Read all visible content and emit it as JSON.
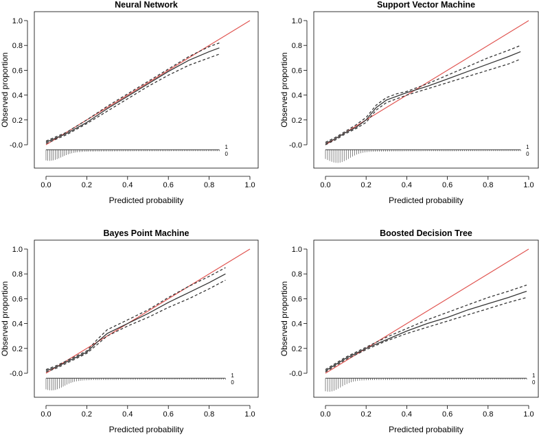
{
  "chart_data": [
    {
      "type": "line",
      "title": "Neural Network",
      "xlabel": "Predicted probability",
      "ylabel": "Observed proportion",
      "xlim": [
        0,
        1
      ],
      "ylim": [
        -0.05,
        1.0
      ],
      "x_ticks": [
        "0.0",
        "0.2",
        "0.4",
        "0.6",
        "0.8",
        "1.0"
      ],
      "y_ticks": [
        "-0.0",
        "0.2",
        "0.4",
        "0.6",
        "0.8",
        "1.0"
      ],
      "rug_labels": [
        "1",
        "0"
      ],
      "series": [
        {
          "name": "ideal",
          "color": "#e0534f",
          "style": "solid",
          "x": [
            0,
            1
          ],
          "y": [
            0,
            1
          ]
        },
        {
          "name": "calibration",
          "color": "#333333",
          "style": "solid",
          "x": [
            0.0,
            0.1,
            0.2,
            0.3,
            0.4,
            0.5,
            0.6,
            0.7,
            0.8,
            0.85
          ],
          "y": [
            0.02,
            0.09,
            0.18,
            0.29,
            0.39,
            0.49,
            0.59,
            0.68,
            0.75,
            0.78
          ]
        },
        {
          "name": "upper bound",
          "color": "#333333",
          "style": "dashed",
          "x": [
            0.0,
            0.1,
            0.2,
            0.3,
            0.4,
            0.5,
            0.6,
            0.7,
            0.8,
            0.85
          ],
          "y": [
            0.03,
            0.1,
            0.2,
            0.31,
            0.41,
            0.51,
            0.61,
            0.71,
            0.79,
            0.82
          ]
        },
        {
          "name": "lower bound",
          "color": "#333333",
          "style": "dashed",
          "x": [
            0.0,
            0.1,
            0.2,
            0.3,
            0.4,
            0.5,
            0.6,
            0.7,
            0.8,
            0.85
          ],
          "y": [
            0.01,
            0.08,
            0.17,
            0.27,
            0.37,
            0.47,
            0.56,
            0.64,
            0.7,
            0.73
          ]
        }
      ],
      "rug": {
        "x_max": 0.85,
        "peak": 0.02,
        "neg_depth": 0.09
      }
    },
    {
      "type": "line",
      "title": "Support Vector Machine",
      "xlabel": "Predicted probability",
      "ylabel": "Observed proportion",
      "xlim": [
        0,
        1
      ],
      "ylim": [
        -0.05,
        1.0
      ],
      "x_ticks": [
        "0.0",
        "0.2",
        "0.4",
        "0.6",
        "0.8",
        "1.0"
      ],
      "y_ticks": [
        "-0.0",
        "0.2",
        "0.4",
        "0.6",
        "0.8",
        "1.0"
      ],
      "rug_labels": [
        "1",
        "0"
      ],
      "series": [
        {
          "name": "ideal",
          "color": "#e0534f",
          "style": "solid",
          "x": [
            0,
            1
          ],
          "y": [
            0,
            1
          ]
        },
        {
          "name": "calibration",
          "color": "#333333",
          "style": "solid",
          "x": [
            0.0,
            0.05,
            0.1,
            0.15,
            0.2,
            0.25,
            0.3,
            0.35,
            0.4,
            0.5,
            0.6,
            0.7,
            0.8,
            0.9,
            0.96
          ],
          "y": [
            0.01,
            0.05,
            0.1,
            0.14,
            0.2,
            0.3,
            0.36,
            0.39,
            0.42,
            0.47,
            0.53,
            0.59,
            0.65,
            0.71,
            0.75
          ]
        },
        {
          "name": "upper bound",
          "color": "#333333",
          "style": "dashed",
          "x": [
            0.0,
            0.05,
            0.1,
            0.15,
            0.2,
            0.25,
            0.3,
            0.35,
            0.4,
            0.5,
            0.6,
            0.7,
            0.8,
            0.9,
            0.96
          ],
          "y": [
            0.02,
            0.06,
            0.11,
            0.16,
            0.22,
            0.32,
            0.38,
            0.41,
            0.43,
            0.49,
            0.56,
            0.63,
            0.7,
            0.76,
            0.8
          ]
        },
        {
          "name": "lower bound",
          "color": "#333333",
          "style": "dashed",
          "x": [
            0.0,
            0.05,
            0.1,
            0.15,
            0.2,
            0.25,
            0.3,
            0.35,
            0.4,
            0.5,
            0.6,
            0.7,
            0.8,
            0.9,
            0.96
          ],
          "y": [
            0.0,
            0.04,
            0.09,
            0.13,
            0.18,
            0.28,
            0.34,
            0.37,
            0.4,
            0.45,
            0.5,
            0.55,
            0.6,
            0.65,
            0.69
          ]
        }
      ],
      "rug": {
        "x_max": 0.96,
        "peak": 0.06,
        "neg_depth": 0.11
      }
    },
    {
      "type": "line",
      "title": "Bayes Point Machine",
      "xlabel": "Predicted probability",
      "ylabel": "Observed proportion",
      "xlim": [
        0,
        1
      ],
      "ylim": [
        -0.05,
        1.0
      ],
      "x_ticks": [
        "0.0",
        "0.2",
        "0.4",
        "0.6",
        "0.8",
        "1.0"
      ],
      "y_ticks": [
        "-0.0",
        "0.2",
        "0.4",
        "0.6",
        "0.8",
        "1.0"
      ],
      "rug_labels": [
        "1",
        "0"
      ],
      "series": [
        {
          "name": "ideal",
          "color": "#e0534f",
          "style": "solid",
          "x": [
            0,
            1
          ],
          "y": [
            0,
            1
          ]
        },
        {
          "name": "calibration",
          "color": "#333333",
          "style": "solid",
          "x": [
            0.0,
            0.05,
            0.1,
            0.15,
            0.2,
            0.25,
            0.3,
            0.4,
            0.5,
            0.6,
            0.7,
            0.8,
            0.88
          ],
          "y": [
            0.02,
            0.05,
            0.09,
            0.13,
            0.17,
            0.25,
            0.32,
            0.4,
            0.48,
            0.57,
            0.65,
            0.73,
            0.8
          ]
        },
        {
          "name": "upper bound",
          "color": "#333333",
          "style": "dashed",
          "x": [
            0.0,
            0.05,
            0.1,
            0.15,
            0.2,
            0.25,
            0.3,
            0.4,
            0.5,
            0.6,
            0.7,
            0.8,
            0.88
          ],
          "y": [
            0.03,
            0.06,
            0.1,
            0.14,
            0.18,
            0.27,
            0.35,
            0.43,
            0.51,
            0.61,
            0.7,
            0.78,
            0.85
          ]
        },
        {
          "name": "lower bound",
          "color": "#333333",
          "style": "dashed",
          "x": [
            0.0,
            0.05,
            0.1,
            0.15,
            0.2,
            0.25,
            0.3,
            0.4,
            0.5,
            0.6,
            0.7,
            0.8,
            0.88
          ],
          "y": [
            0.01,
            0.04,
            0.08,
            0.12,
            0.16,
            0.23,
            0.3,
            0.38,
            0.45,
            0.53,
            0.6,
            0.68,
            0.75
          ]
        }
      ],
      "rug": {
        "x_max": 0.88,
        "peak": 0.03,
        "neg_depth": 0.1
      }
    },
    {
      "type": "line",
      "title": "Boosted Decision Tree",
      "xlabel": "Predicted probability",
      "ylabel": "Observed proportion",
      "xlim": [
        0,
        1
      ],
      "ylim": [
        -0.05,
        1.0
      ],
      "x_ticks": [
        "0.0",
        "0.2",
        "0.4",
        "0.6",
        "0.8",
        "1.0"
      ],
      "y_ticks": [
        "-0.0",
        "0.2",
        "0.4",
        "0.6",
        "0.8",
        "1.0"
      ],
      "rug_labels": [
        "1",
        "0"
      ],
      "series": [
        {
          "name": "ideal",
          "color": "#e0534f",
          "style": "solid",
          "x": [
            0,
            1
          ],
          "y": [
            0,
            1
          ]
        },
        {
          "name": "calibration",
          "color": "#333333",
          "style": "solid",
          "x": [
            0.0,
            0.05,
            0.1,
            0.15,
            0.2,
            0.3,
            0.4,
            0.5,
            0.6,
            0.7,
            0.8,
            0.9,
            0.99
          ],
          "y": [
            0.02,
            0.07,
            0.12,
            0.16,
            0.2,
            0.27,
            0.34,
            0.4,
            0.45,
            0.51,
            0.56,
            0.61,
            0.66
          ]
        },
        {
          "name": "upper bound",
          "color": "#333333",
          "style": "dashed",
          "x": [
            0.0,
            0.05,
            0.1,
            0.15,
            0.2,
            0.3,
            0.4,
            0.5,
            0.6,
            0.7,
            0.8,
            0.9,
            0.99
          ],
          "y": [
            0.03,
            0.08,
            0.13,
            0.17,
            0.21,
            0.29,
            0.36,
            0.43,
            0.49,
            0.55,
            0.61,
            0.66,
            0.71
          ]
        },
        {
          "name": "lower bound",
          "color": "#333333",
          "style": "dashed",
          "x": [
            0.0,
            0.05,
            0.1,
            0.15,
            0.2,
            0.3,
            0.4,
            0.5,
            0.6,
            0.7,
            0.8,
            0.9,
            0.99
          ],
          "y": [
            0.01,
            0.06,
            0.11,
            0.15,
            0.19,
            0.26,
            0.32,
            0.37,
            0.42,
            0.47,
            0.52,
            0.57,
            0.61
          ]
        }
      ],
      "rug": {
        "x_max": 0.99,
        "peak": 0.02,
        "neg_depth": 0.11
      }
    }
  ]
}
